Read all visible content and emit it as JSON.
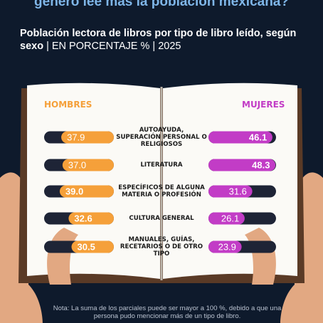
{
  "chart_data": {
    "type": "butterfly-bar",
    "title": "género lee más la población mexicana?",
    "subtitle": "Población lectora de libros por tipo de libro leído, según sexo",
    "unit_note": "| EN PORCENTAJE % | 2025",
    "categories": [
      "AUTOAYUDA, SUPERACIÓN PERSONAL O RELIGIOSOS",
      "LITERATURA",
      "ESPECÍFICOS DE ALGUNA MATERIA O PROFESIÓN",
      "CULTURA GENERAL",
      "MANUALES, GUÍAS, RECETARIOS O DE OTRO TIPO"
    ],
    "series": [
      {
        "name": "HOMBRES",
        "color": "#f5a03a",
        "values": [
          37.9,
          37.0,
          39.0,
          32.6,
          30.5
        ],
        "value_labels": [
          "37.9",
          "37.0",
          "39.0",
          "32.6",
          "30.5"
        ]
      },
      {
        "name": "MUJERES",
        "color": "#c23cc6",
        "values": [
          46.1,
          48.3,
          31.6,
          26.1,
          23.9
        ],
        "value_labels": [
          "46.1",
          "48.3",
          "31.6",
          "26.1",
          "23.9"
        ]
      }
    ],
    "note": "Nota: La suma de los parciales puede ser mayor a 100 %, debido a que una persona pudo mencionar más de un tipo de libro."
  }
}
